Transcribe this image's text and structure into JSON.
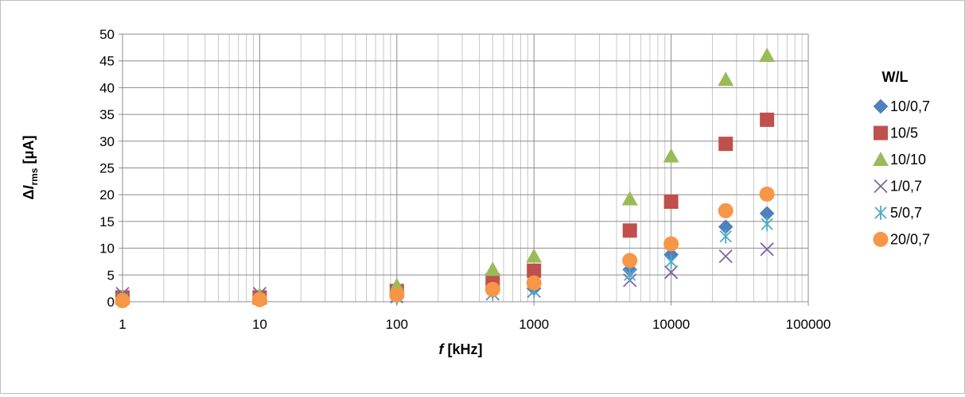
{
  "chart_data": {
    "type": "scatter",
    "xscale": "log",
    "xlim": [
      1,
      100000
    ],
    "ylim": [
      0,
      50
    ],
    "grid": true,
    "legend_position": "right",
    "x_ticks": [
      "1",
      "10",
      "100",
      "1000",
      "10000",
      "100000"
    ],
    "y_ticks": [
      "0",
      "5",
      "10",
      "15",
      "20",
      "25",
      "30",
      "35",
      "40",
      "45",
      "50"
    ],
    "xlabel": {
      "italic": "f",
      "rest": " [kHz]"
    },
    "ylabel": {
      "delta": "Δ",
      "italic": "I",
      "sub": "rms",
      "rest": " [μA]"
    },
    "legend_title": "W/L",
    "x": [
      1,
      10,
      100,
      500,
      1000,
      5000,
      10000,
      25000,
      50000
    ],
    "series": [
      {
        "name": "10/0,7",
        "marker": "diamond",
        "color": "#4f81bd",
        "values": [
          0.3,
          0.3,
          1.0,
          2.0,
          2.5,
          6.0,
          8.8,
          14.0,
          16.5
        ]
      },
      {
        "name": "10/5",
        "marker": "square",
        "color": "#c0504d",
        "values": [
          0.8,
          0.8,
          2.0,
          4.0,
          5.8,
          13.3,
          18.7,
          29.5,
          34.0
        ]
      },
      {
        "name": "10/10",
        "marker": "triangle",
        "color": "#9bbb59",
        "values": [
          1.0,
          1.2,
          3.0,
          6.0,
          8.5,
          19.2,
          27.2,
          41.5,
          46.0
        ]
      },
      {
        "name": "1/0,7",
        "marker": "x",
        "color": "#8064a2",
        "values": [
          1.5,
          1.5,
          1.0,
          1.5,
          2.0,
          4.0,
          5.5,
          8.5,
          9.8
        ]
      },
      {
        "name": "5/0,7",
        "marker": "asterisk",
        "color": "#4bacc6",
        "values": [
          0.5,
          0.5,
          0.8,
          1.5,
          2.0,
          5.0,
          7.5,
          12.2,
          14.5
        ]
      },
      {
        "name": "20/0,7",
        "marker": "circle",
        "color": "#f79646",
        "values": [
          0.2,
          0.4,
          1.3,
          2.3,
          3.5,
          7.7,
          10.8,
          17.0,
          20.1
        ]
      }
    ]
  }
}
